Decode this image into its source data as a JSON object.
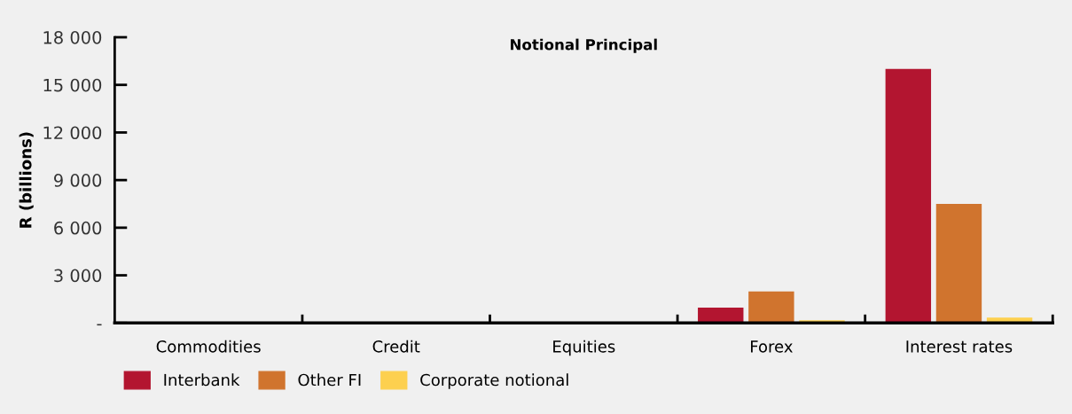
{
  "chart_data": {
    "type": "bar",
    "title": "Notional Principal",
    "ylabel": "R (billions)",
    "categories": [
      "Commodities",
      "Credit",
      "Equities",
      "Forex",
      "Interest rates"
    ],
    "series": [
      {
        "name": "Interbank",
        "color": "#b31530",
        "values": [
          0,
          0,
          0,
          960,
          16000
        ]
      },
      {
        "name": "Other FI",
        "color": "#d0742e",
        "values": [
          0,
          0,
          0,
          1980,
          7500
        ]
      },
      {
        "name": "Corporate notional",
        "color": "#fdd04f",
        "values": [
          0,
          0,
          0,
          170,
          340
        ]
      }
    ],
    "ylim": [
      0,
      18000
    ],
    "yticks": [
      {
        "value": 0,
        "label": "-"
      },
      {
        "value": 3000,
        "label": "3 000"
      },
      {
        "value": 6000,
        "label": "6 000"
      },
      {
        "value": 9000,
        "label": "9 000"
      },
      {
        "value": 12000,
        "label": "12 000"
      },
      {
        "value": 15000,
        "label": "15 000"
      },
      {
        "value": 18000,
        "label": "18 000"
      }
    ],
    "grid": false,
    "legend": "bottom left"
  }
}
